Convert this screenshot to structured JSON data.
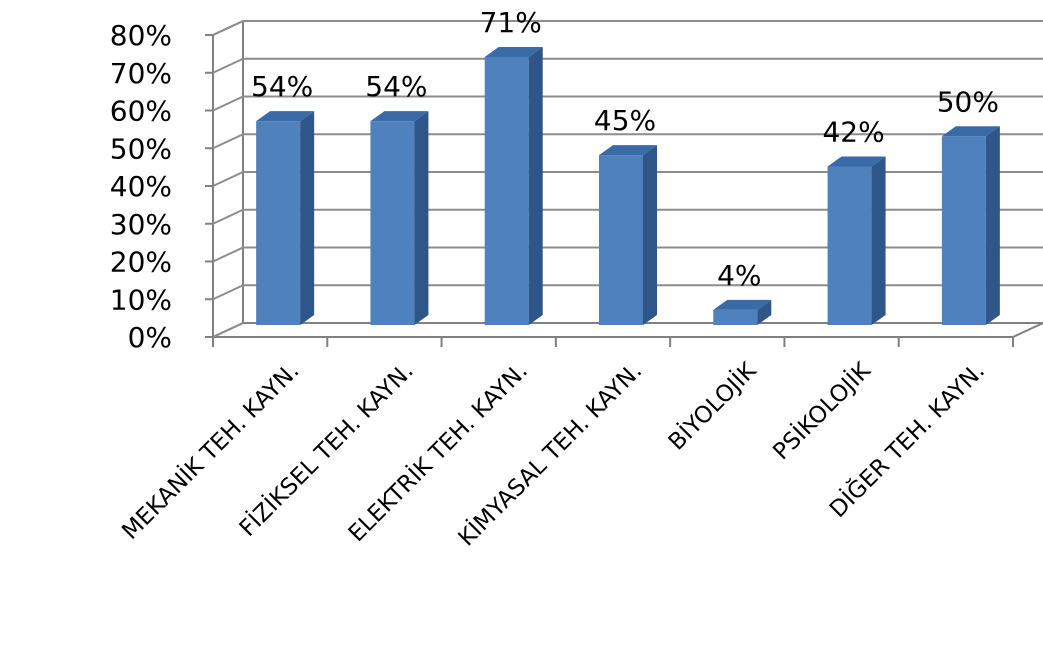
{
  "chart_data": {
    "type": "bar",
    "categories": [
      "MEKANİK TEH. KAYN.",
      "FİZİKSEL TEH. KAYN.",
      "ELEKTRİK TEH. KAYN.",
      "KİMYASAL TEH. KAYN.",
      "BİYOLOJİK",
      "PSİKOLOJİK",
      "DİĞER TEH. KAYN."
    ],
    "values": [
      54,
      54,
      71,
      45,
      4,
      42,
      50
    ],
    "data_labels": [
      "54%",
      "54%",
      "71%",
      "45%",
      "4%",
      "42%",
      "50%"
    ],
    "y_ticks": [
      "0%",
      "10%",
      "20%",
      "30%",
      "40%",
      "50%",
      "60%",
      "70%",
      "80%"
    ],
    "ylim": [
      0,
      80
    ],
    "grid": true,
    "legend": "none",
    "style": "3d-column",
    "colors": {
      "bar_front": "#4f81bd",
      "bar_side": "#2f5688",
      "bar_top": "#3a6aa8",
      "grid": "#8c8c8c",
      "wall_edge": "#808080"
    }
  }
}
